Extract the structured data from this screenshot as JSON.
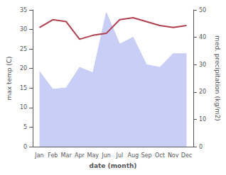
{
  "chart_data": {
    "type": "line",
    "xlabel": "date (month)",
    "ylabel": "max temp (C)",
    "y2label": "med. precipitation (kg/m2)",
    "categories": [
      "Jan",
      "Feb",
      "Mar",
      "Apr",
      "May",
      "Jun",
      "Jul",
      "Aug",
      "Sep",
      "Oct",
      "Nov",
      "Dec"
    ],
    "series": [
      {
        "type": "area",
        "axis": "y2",
        "color": "#c8cef5",
        "values": [
          27.5,
          21.0,
          21.5,
          29.0,
          27.0,
          49.0,
          37.5,
          40.0,
          30.0,
          29.0,
          34.0,
          34.0
        ]
      },
      {
        "type": "line",
        "color": "#b04050",
        "values": [
          30.5,
          32.5,
          32.0,
          27.5,
          28.5,
          29.0,
          32.5,
          33.0,
          32.0,
          31.0,
          30.5,
          31.0
        ]
      }
    ],
    "ylim": [
      0,
      35
    ],
    "yticks": [
      0,
      5,
      10,
      15,
      20,
      25,
      30,
      35
    ],
    "y2lim": [
      0,
      50
    ],
    "y2ticks": [
      0,
      10,
      20,
      30,
      40,
      50
    ],
    "grid": false
  }
}
